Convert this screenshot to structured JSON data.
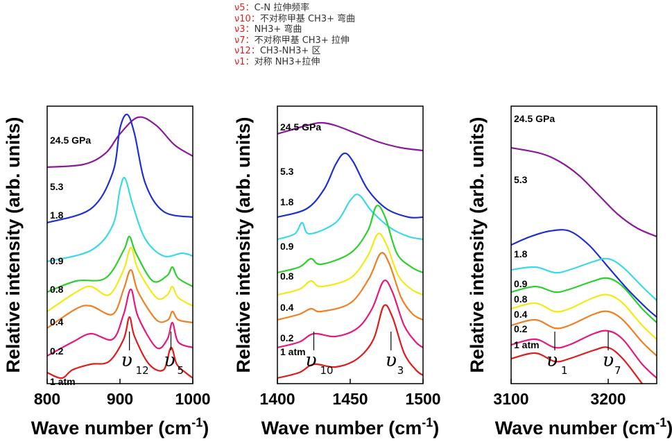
{
  "legend": [
    {
      "key": "ν5",
      "text": "C-N 拉伸频率"
    },
    {
      "key": "ν10",
      "text": "不对称甲基 CH3+ 弯曲"
    },
    {
      "key": "ν3",
      "text": "NH3+ 弯曲"
    },
    {
      "key": "ν7",
      "text": "不对称甲基 CH3+ 拉伸"
    },
    {
      "key": "ν12",
      "text": "CH3-NH3+ 区"
    },
    {
      "key": "ν1",
      "text": "对称 NH3+拉伸"
    }
  ],
  "chart_data": [
    {
      "type": "line",
      "ylabel": "Relative intensity (arb. units)",
      "xlabel": "Wave number (cm-1)",
      "xlim": [
        800,
        1000
      ],
      "xticks": [
        800,
        900,
        1000
      ],
      "pressures": [
        "24.5 GPa",
        "5.3",
        "1.8",
        "0.9",
        "0.8",
        "0.4",
        "0.2",
        "1 atm"
      ],
      "series": [
        {
          "name": "24.5 GPa",
          "color": "#8b1a9b",
          "baseline": 0.78,
          "x": [
            800,
            850,
            880,
            900,
            925,
            950,
            975,
            1000
          ],
          "y": [
            0.0,
            0.01,
            0.05,
            0.12,
            0.18,
            0.15,
            0.08,
            0.04
          ]
        },
        {
          "name": "5.3",
          "color": "#1e2ed6",
          "baseline": 0.58,
          "x": [
            800,
            860,
            890,
            900,
            910,
            920,
            935,
            960,
            1000
          ],
          "y": [
            0.0,
            0.05,
            0.18,
            0.34,
            0.39,
            0.32,
            0.14,
            0.04,
            0.02
          ]
        },
        {
          "name": "1.8",
          "color": "#39d9e8",
          "baseline": 0.44,
          "x": [
            800,
            860,
            890,
            900,
            907,
            918,
            935,
            960,
            985,
            1000
          ],
          "y": [
            0.0,
            0.04,
            0.13,
            0.26,
            0.3,
            0.2,
            0.08,
            0.02,
            0.03,
            0.02
          ]
        },
        {
          "name": "0.9",
          "color": "#2bd12b",
          "baseline": 0.33,
          "x": [
            800,
            840,
            880,
            905,
            913,
            922,
            945,
            965,
            972,
            980,
            1000
          ],
          "y": [
            0.0,
            0.04,
            0.05,
            0.15,
            0.2,
            0.14,
            0.04,
            0.06,
            0.09,
            0.05,
            0.02
          ]
        },
        {
          "name": "0.8",
          "color": "#f2ea10",
          "baseline": 0.26,
          "x": [
            800,
            840,
            860,
            885,
            905,
            915,
            925,
            950,
            965,
            972,
            980,
            1000
          ],
          "y": [
            0.0,
            0.07,
            0.09,
            0.06,
            0.15,
            0.23,
            0.15,
            0.05,
            0.06,
            0.09,
            0.05,
            0.02
          ]
        },
        {
          "name": "0.4",
          "color": "#f07f24",
          "baseline": 0.2,
          "x": [
            800,
            840,
            860,
            890,
            905,
            915,
            925,
            950,
            966,
            972,
            980,
            1000
          ],
          "y": [
            0.0,
            0.07,
            0.08,
            0.05,
            0.14,
            0.21,
            0.13,
            0.03,
            0.03,
            0.06,
            0.03,
            0.02
          ]
        },
        {
          "name": "0.2",
          "color": "#e8187a",
          "baseline": 0.1,
          "x": [
            800,
            835,
            860,
            890,
            905,
            915,
            925,
            950,
            965,
            972,
            980,
            1000
          ],
          "y": [
            0.0,
            0.05,
            0.08,
            0.06,
            0.15,
            0.24,
            0.14,
            0.03,
            0.06,
            0.12,
            0.05,
            0.03
          ]
        },
        {
          "name": "1 atm",
          "color": "#e01b1b",
          "baseline": 0.02,
          "x": [
            800,
            820,
            835,
            860,
            885,
            905,
            913,
            920,
            940,
            960,
            970,
            978,
            990,
            1000
          ],
          "y": [
            0.02,
            0.0,
            0.03,
            0.05,
            0.06,
            0.14,
            0.22,
            0.15,
            0.05,
            0.03,
            0.11,
            0.05,
            0.02,
            0.0
          ]
        }
      ],
      "modes": [
        {
          "symbol": "υ",
          "sub": "12",
          "x": 913
        },
        {
          "symbol": "υ",
          "sub": "5",
          "x": 970
        }
      ]
    },
    {
      "type": "line",
      "ylabel": "Relative intensity (arb. units)",
      "xlabel": "Wave number (cm-1)",
      "xlim": [
        1400,
        1500
      ],
      "xticks": [
        1400,
        1450,
        1500
      ],
      "pressures": [
        "24.5 GPa",
        "5.3",
        "1.8",
        "0.9",
        "0.8",
        "0.4",
        "0.2",
        "1 atm"
      ],
      "series": [
        {
          "name": "24.5 GPa",
          "color": "#8b1a9b",
          "baseline": 0.84,
          "x": [
            1400,
            1420,
            1430,
            1440,
            1455,
            1470,
            1485,
            1500
          ],
          "y": [
            0.06,
            0.09,
            0.1,
            0.09,
            0.06,
            0.03,
            0.01,
            0.0
          ]
        },
        {
          "name": "5.3",
          "color": "#1e2ed6",
          "baseline": 0.6,
          "x": [
            1400,
            1420,
            1432,
            1440,
            1446,
            1452,
            1462,
            1475,
            1490,
            1500
          ],
          "y": [
            0.0,
            0.03,
            0.1,
            0.19,
            0.23,
            0.2,
            0.1,
            0.03,
            0.0,
            0.0
          ]
        },
        {
          "name": "1.8",
          "color": "#39d9e8",
          "baseline": 0.52,
          "x": [
            1400,
            1412,
            1417,
            1422,
            1440,
            1450,
            1456,
            1465,
            1478,
            1490,
            1500
          ],
          "y": [
            0.0,
            0.02,
            0.06,
            0.02,
            0.06,
            0.14,
            0.16,
            0.1,
            0.04,
            0.01,
            0.0
          ]
        },
        {
          "name": "0.9",
          "color": "#2bd12b",
          "baseline": 0.4,
          "x": [
            1400,
            1415,
            1423,
            1430,
            1450,
            1462,
            1468,
            1474,
            1482,
            1492,
            1500
          ],
          "y": [
            0.0,
            0.02,
            0.05,
            0.03,
            0.07,
            0.15,
            0.24,
            0.2,
            0.07,
            0.02,
            0.0
          ]
        },
        {
          "name": "0.8",
          "color": "#f2ea10",
          "baseline": 0.32,
          "x": [
            1400,
            1415,
            1423,
            1430,
            1450,
            1462,
            1469,
            1475,
            1483,
            1492,
            1500
          ],
          "y": [
            0.0,
            0.02,
            0.05,
            0.03,
            0.06,
            0.14,
            0.22,
            0.18,
            0.07,
            0.02,
            0.0
          ]
        },
        {
          "name": "0.4",
          "color": "#f07f24",
          "baseline": 0.23,
          "x": [
            1400,
            1415,
            1423,
            1430,
            1450,
            1463,
            1471,
            1477,
            1485,
            1493,
            1500
          ],
          "y": [
            0.0,
            0.02,
            0.04,
            0.03,
            0.06,
            0.15,
            0.24,
            0.2,
            0.08,
            0.02,
            0.0
          ]
        },
        {
          "name": "0.2",
          "color": "#e8187a",
          "baseline": 0.13,
          "x": [
            1400,
            1415,
            1425,
            1440,
            1455,
            1465,
            1473,
            1479,
            1487,
            1495,
            1500
          ],
          "y": [
            0.0,
            0.02,
            0.05,
            0.04,
            0.07,
            0.14,
            0.24,
            0.2,
            0.08,
            0.02,
            0.0
          ]
        },
        {
          "name": "1 atm",
          "color": "#e01b1b",
          "baseline": 0.02,
          "x": [
            1400,
            1415,
            1425,
            1440,
            1455,
            1466,
            1473,
            1479,
            1487,
            1495,
            1500
          ],
          "y": [
            0.0,
            0.02,
            0.05,
            0.04,
            0.07,
            0.14,
            0.26,
            0.22,
            0.09,
            0.03,
            0.01
          ]
        }
      ],
      "modes": [
        {
          "symbol": "υ",
          "sub": "10",
          "x": 1425
        },
        {
          "symbol": "υ",
          "sub": "3",
          "x": 1478
        }
      ]
    },
    {
      "type": "line",
      "ylabel": "Relative intensity (arb. units)",
      "xlabel": "Wave number (cm-1)",
      "xlim": [
        3100,
        3250
      ],
      "xticks": [
        3100,
        3200
      ],
      "pressures": [
        "24.5 GPa",
        "5.3",
        "1.8",
        "0.9",
        "0.8",
        "0.4",
        "0.2",
        "1 atm"
      ],
      "series": [
        {
          "name": "24.5 GPa",
          "color": "#8b1a9b",
          "baseline": 0.53,
          "x": [
            3100,
            3130,
            3150,
            3170,
            3190,
            3210,
            3230,
            3250
          ],
          "y": [
            0.32,
            0.3,
            0.27,
            0.22,
            0.15,
            0.08,
            0.03,
            0.0
          ]
        },
        {
          "name": "5.3",
          "color": "#1e2ed6",
          "baseline": 0.42,
          "x": [
            3100,
            3120,
            3140,
            3160,
            3180,
            3200,
            3220,
            3240,
            3250
          ],
          "y": [
            0.08,
            0.11,
            0.13,
            0.13,
            0.08,
            0.0,
            -0.08,
            -0.15,
            -0.18
          ]
        },
        {
          "name": "1.8",
          "color": "#39d9e8",
          "baseline": 0.42,
          "x": [
            3100,
            3125,
            3145,
            3160,
            3185,
            3200,
            3215,
            3235,
            3250
          ],
          "y": [
            -0.01,
            0.0,
            -0.02,
            -0.01,
            0.02,
            0.03,
            0.0,
            -0.07,
            -0.12
          ]
        },
        {
          "name": "0.9",
          "color": "#2bd12b",
          "baseline": 0.33,
          "x": [
            3100,
            3125,
            3145,
            3160,
            3185,
            3200,
            3215,
            3235,
            3250
          ],
          "y": [
            0.0,
            0.02,
            0.0,
            0.01,
            0.04,
            0.05,
            0.02,
            -0.06,
            -0.11
          ]
        },
        {
          "name": "0.8",
          "color": "#f2ea10",
          "baseline": 0.27,
          "x": [
            3100,
            3125,
            3145,
            3160,
            3185,
            3200,
            3215,
            3235,
            3250
          ],
          "y": [
            0.0,
            0.02,
            -0.01,
            0.0,
            0.04,
            0.05,
            0.02,
            -0.06,
            -0.11
          ]
        },
        {
          "name": "0.4",
          "color": "#f07f24",
          "baseline": 0.21,
          "x": [
            3100,
            3125,
            3145,
            3160,
            3185,
            3200,
            3215,
            3235,
            3250
          ],
          "y": [
            0.0,
            0.02,
            -0.01,
            0.0,
            0.04,
            0.05,
            0.02,
            -0.06,
            -0.11
          ]
        },
        {
          "name": "0.2",
          "color": "#e8187a",
          "baseline": 0.14,
          "x": [
            3100,
            3125,
            3145,
            3160,
            3185,
            3200,
            3215,
            3235,
            3250
          ],
          "y": [
            0.0,
            0.02,
            -0.01,
            0.0,
            0.04,
            0.05,
            0.02,
            -0.07,
            -0.12
          ]
        },
        {
          "name": "1 atm",
          "color": "#e01b1b",
          "baseline": 0.09,
          "x": [
            3100,
            3125,
            3145,
            3160,
            3185,
            3200,
            3215,
            3235,
            3250
          ],
          "y": [
            0.0,
            0.02,
            -0.01,
            0.0,
            0.03,
            0.04,
            0.0,
            -0.09,
            -0.16
          ]
        }
      ],
      "modes": [
        {
          "symbol": "υ",
          "sub": "1",
          "x": 3145
        },
        {
          "symbol": "υ",
          "sub": "7",
          "x": 3200
        }
      ]
    }
  ]
}
